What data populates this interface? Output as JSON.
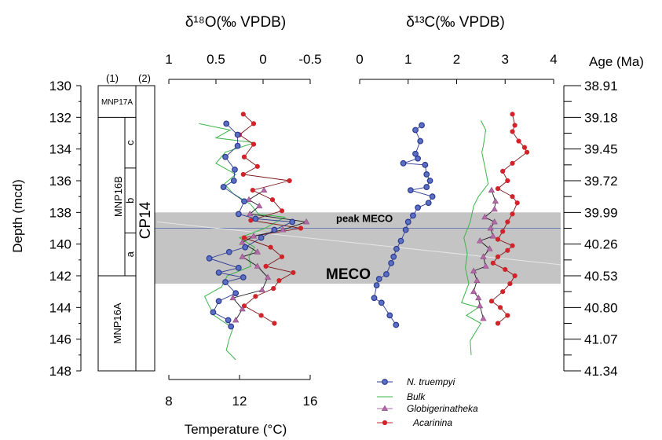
{
  "chart_data": {
    "type": "line",
    "title_d18o": "δ¹⁸O(‰ VPDB)",
    "title_d13c": "δ¹³C(‰ VPDB)",
    "xlabel_temperature": "Temperature (°C)",
    "ylabel_depth": "Depth (mcd)",
    "ylabel_age": "Age (Ma)",
    "depth_ticks": [
      "130",
      "132",
      "134",
      "136",
      "138",
      "140",
      "142",
      "144",
      "146",
      "148"
    ],
    "age_ticks": [
      "38.91",
      "39.18",
      "39.45",
      "39.72",
      "39.99",
      "40.26",
      "40.53",
      "40.80",
      "41.07",
      "41.34"
    ],
    "d18o_ticks": [
      "1",
      "0.5",
      "0",
      "-0.5"
    ],
    "d13c_ticks": [
      "0",
      "1",
      "2",
      "3",
      "4"
    ],
    "temp_ticks": [
      "8",
      "12",
      "16"
    ],
    "ylim": [
      130,
      148
    ],
    "d18o_xlim": [
      1,
      -0.5
    ],
    "d13c_xlim": [
      0,
      4
    ],
    "temp_xlim": [
      8,
      16
    ],
    "column_headers": [
      "(1)",
      "(2)"
    ],
    "zones_1": [
      {
        "label": "MNP17A",
        "top": 130,
        "bottom": 132
      },
      {
        "label": "MNP16B",
        "top": 132,
        "bottom": 142
      },
      {
        "label": "MNP16A",
        "top": 142,
        "bottom": 148
      }
    ],
    "subzones": [
      {
        "label": "c",
        "top": 132,
        "bottom": 135.2
      },
      {
        "label": "b",
        "top": 135.2,
        "bottom": 139.3
      },
      {
        "label": "a",
        "top": 139.3,
        "bottom": 142
      }
    ],
    "zones_2": [
      {
        "label": "CP14",
        "top": 130,
        "bottom": 148
      }
    ],
    "meco_band": {
      "label": "MECO",
      "top": 138,
      "bottom": 142.5
    },
    "peak_meco": {
      "label": "peak MECO",
      "depth": 139
    },
    "legend": [
      "N. truempyi",
      "Bulk",
      "Globigerinatheka",
      "Acarinina"
    ],
    "colors": {
      "n_truempyi": "#2f3f9a",
      "bulk": "#3cb54a",
      "globigerinatheka": "#b56aa8",
      "acarinina": "#d2232a",
      "band": "#c4c4c4"
    },
    "d18o_series": [
      {
        "key": "n_truempyi",
        "points": [
          [
            0.39,
            132.4
          ],
          [
            0.27,
            133.1
          ],
          [
            0.27,
            133.8
          ],
          [
            0.4,
            134.5
          ],
          [
            0.3,
            135.3
          ],
          [
            0.31,
            136
          ],
          [
            0.42,
            136.4
          ],
          [
            0.2,
            137.3
          ],
          [
            0.26,
            138.1
          ],
          [
            0.08,
            138.4
          ],
          [
            -0.31,
            138.6
          ],
          [
            -0.12,
            139.1
          ],
          [
            0.02,
            139.6
          ],
          [
            0.19,
            140.2
          ],
          [
            0.36,
            140.5
          ],
          [
            0.57,
            140.9
          ],
          [
            0.26,
            141.5
          ],
          [
            0.47,
            141.8
          ],
          [
            0.21,
            142.1
          ],
          [
            0.4,
            142.4
          ],
          [
            0.29,
            143.1
          ],
          [
            0.47,
            143.6
          ],
          [
            0.53,
            144.3
          ],
          [
            0.37,
            144.8
          ],
          [
            0.34,
            145.2
          ]
        ]
      },
      {
        "key": "bulk",
        "points": [
          [
            0.68,
            132.4
          ],
          [
            0.35,
            132.8
          ],
          [
            0.5,
            133.3
          ],
          [
            0.09,
            133.6
          ],
          [
            0.4,
            134.2
          ],
          [
            0.5,
            134.9
          ],
          [
            0.29,
            135.6
          ],
          [
            0.41,
            136.2
          ],
          [
            0.32,
            136.8
          ],
          [
            0.13,
            137.5
          ],
          [
            0.05,
            138.1
          ],
          [
            -0.23,
            138.3
          ],
          [
            -0.02,
            139
          ],
          [
            0.25,
            139.6
          ],
          [
            0.09,
            140.2
          ],
          [
            0.15,
            140.8
          ],
          [
            0.13,
            141.4
          ],
          [
            0.38,
            142
          ],
          [
            0.44,
            142.7
          ],
          [
            0.62,
            143.3
          ],
          [
            0.58,
            143.8
          ],
          [
            0.52,
            144.5
          ],
          [
            0.32,
            145.3
          ],
          [
            0.36,
            146
          ],
          [
            0.39,
            146.7
          ],
          [
            0.29,
            147.3
          ]
        ]
      },
      {
        "key": "globigerinatheka",
        "points": [
          [
            -0.01,
            136.6
          ],
          [
            0.15,
            137.2
          ],
          [
            0.04,
            137.6
          ],
          [
            0.14,
            138.1
          ],
          [
            -0.46,
            138.6
          ],
          [
            -0.21,
            139.1
          ],
          [
            0.1,
            139.5
          ],
          [
            0.22,
            139.9
          ],
          [
            0.06,
            140.5
          ],
          [
            0.22,
            140.8
          ],
          [
            0.06,
            141.4
          ],
          [
            -0.05,
            142.1
          ],
          [
            0.01,
            142.9
          ],
          [
            0.32,
            143.4
          ],
          [
            0.22,
            144.1
          ],
          [
            0.29,
            144.8
          ]
        ]
      },
      {
        "key": "acarinina",
        "points": [
          [
            0.21,
            131.8
          ],
          [
            0.1,
            132.4
          ],
          [
            0.25,
            133.1
          ],
          [
            0.1,
            133.7
          ],
          [
            0.2,
            134.5
          ],
          [
            0.06,
            135.1
          ],
          [
            0.21,
            135.6
          ],
          [
            -0.28,
            136
          ],
          [
            0.11,
            136.6
          ],
          [
            -0.1,
            137.2
          ],
          [
            -0.2,
            137.9
          ],
          [
            0.13,
            138.5
          ],
          [
            -0.4,
            139
          ],
          [
            0.2,
            139.6
          ],
          [
            -0.08,
            140.2
          ],
          [
            -0.2,
            140.8
          ],
          [
            -0.03,
            141.4
          ],
          [
            -0.32,
            141.8
          ],
          [
            -0.17,
            142.3
          ],
          [
            -0.11,
            142.8
          ],
          [
            0.08,
            143.3
          ],
          [
            0.2,
            143.9
          ],
          [
            0.02,
            144.5
          ],
          [
            -0.12,
            145
          ]
        ]
      }
    ],
    "d13c_series": [
      {
        "key": "n_truempyi",
        "points": [
          [
            1.28,
            132.5
          ],
          [
            1.15,
            132.8
          ],
          [
            1.25,
            133.5
          ],
          [
            1.15,
            134.3
          ],
          [
            1.2,
            134.6
          ],
          [
            0.9,
            134.9
          ],
          [
            1.35,
            135
          ],
          [
            1.38,
            135.6
          ],
          [
            1.45,
            136
          ],
          [
            1.38,
            136.4
          ],
          [
            1.05,
            136.6
          ],
          [
            1.5,
            137
          ],
          [
            1.42,
            137.4
          ],
          [
            1.2,
            137.7
          ],
          [
            1.1,
            138.2
          ],
          [
            1.0,
            138.6
          ],
          [
            0.95,
            139.1
          ],
          [
            0.85,
            139.8
          ],
          [
            0.76,
            140.3
          ],
          [
            0.7,
            140.8
          ],
          [
            0.65,
            141.2
          ],
          [
            0.55,
            141.9
          ],
          [
            0.4,
            142.2
          ],
          [
            0.35,
            142.6
          ],
          [
            0.3,
            143.4
          ],
          [
            0.45,
            143.7
          ],
          [
            0.62,
            144.5
          ],
          [
            0.75,
            145.1
          ]
        ]
      },
      {
        "key": "bulk",
        "points": [
          [
            2.5,
            132.2
          ],
          [
            2.6,
            132.8
          ],
          [
            2.55,
            133.8
          ],
          [
            2.52,
            134.2
          ],
          [
            2.6,
            135.4
          ],
          [
            2.65,
            136.2
          ],
          [
            2.45,
            137
          ],
          [
            2.35,
            137.6
          ],
          [
            2.28,
            138.6
          ],
          [
            2.15,
            139.6
          ],
          [
            2.22,
            140.6
          ],
          [
            2.18,
            141.5
          ],
          [
            2.25,
            142.5
          ],
          [
            2.1,
            143.7
          ],
          [
            2.45,
            144
          ],
          [
            2.2,
            144.5
          ],
          [
            2.5,
            145
          ],
          [
            2.28,
            146.1
          ],
          [
            2.3,
            147
          ]
        ]
      },
      {
        "key": "globigerinatheka",
        "points": [
          [
            2.72,
            136.6
          ],
          [
            2.8,
            137.3
          ],
          [
            2.78,
            137.8
          ],
          [
            2.58,
            138.3
          ],
          [
            2.78,
            138.6
          ],
          [
            2.7,
            139
          ],
          [
            2.75,
            139.5
          ],
          [
            2.48,
            139.8
          ],
          [
            2.68,
            140.3
          ],
          [
            2.55,
            140.8
          ],
          [
            2.6,
            141.4
          ],
          [
            2.35,
            141.7
          ],
          [
            2.42,
            142.3
          ],
          [
            2.35,
            143
          ],
          [
            2.45,
            143.4
          ],
          [
            2.48,
            143.9
          ],
          [
            2.55,
            144.7
          ]
        ]
      },
      {
        "key": "acarinina",
        "points": [
          [
            3.15,
            131.8
          ],
          [
            3.2,
            132.5
          ],
          [
            3.15,
            132.9
          ],
          [
            3.28,
            133.5
          ],
          [
            3.4,
            133.9
          ],
          [
            3.45,
            134.2
          ],
          [
            3.15,
            134.9
          ],
          [
            2.95,
            135.4
          ],
          [
            3.05,
            136
          ],
          [
            2.85,
            136.5
          ],
          [
            3.15,
            137
          ],
          [
            3.25,
            137.4
          ],
          [
            3.15,
            138.1
          ],
          [
            3.05,
            138.6
          ],
          [
            2.95,
            139.2
          ],
          [
            2.85,
            139.7
          ],
          [
            3.15,
            140.1
          ],
          [
            3.05,
            140.4
          ],
          [
            2.85,
            140.8
          ],
          [
            2.75,
            141.2
          ],
          [
            3.0,
            141.6
          ],
          [
            3.2,
            142
          ],
          [
            3.1,
            142.5
          ],
          [
            2.95,
            143
          ],
          [
            2.72,
            143.6
          ],
          [
            2.9,
            144
          ],
          [
            3.05,
            144.5
          ],
          [
            2.85,
            145
          ]
        ]
      }
    ]
  }
}
